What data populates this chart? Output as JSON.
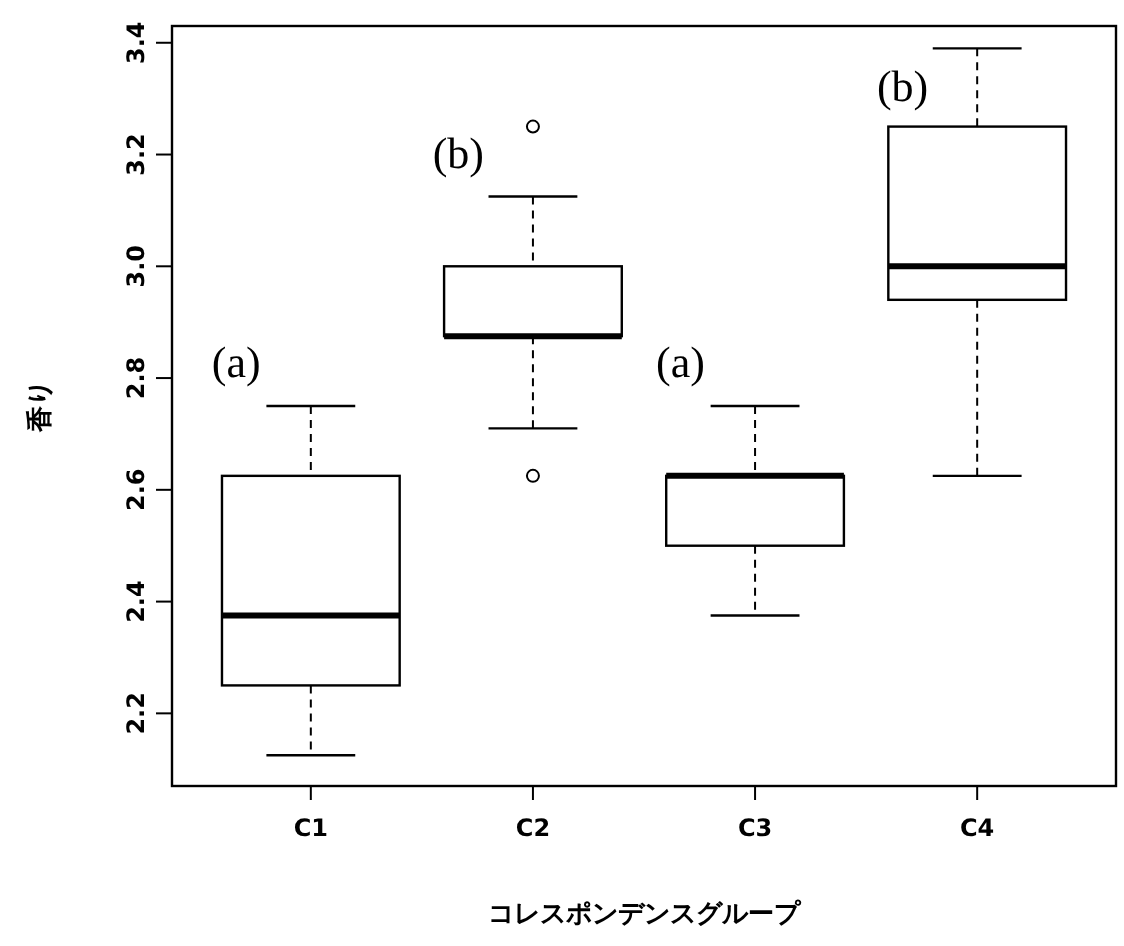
{
  "chart_data": {
    "type": "box",
    "xlabel": "コレスポンデンスグループ",
    "ylabel": "香り",
    "categories": [
      "C1",
      "C2",
      "C3",
      "C4"
    ],
    "boxes": [
      {
        "low": 2.125,
        "q1": 2.25,
        "median": 2.375,
        "q3": 2.625,
        "high": 2.75
      },
      {
        "low": 2.71,
        "q1": 2.875,
        "median": 2.875,
        "q3": 3.0,
        "high": 3.125,
        "outliers": [
          3.25,
          2.625
        ]
      },
      {
        "low": 2.375,
        "q1": 2.5,
        "median": 2.625,
        "q3": 2.625,
        "high": 2.75
      },
      {
        "low": 2.625,
        "q1": 2.94,
        "median": 3.0,
        "q3": 3.25,
        "high": 3.39
      }
    ],
    "ylim": [
      2.07,
      3.43
    ],
    "yticks": [
      2.2,
      2.4,
      2.6,
      2.8,
      {
        "value": 3,
        "label": "3.0"
      },
      3.2,
      3.4
    ],
    "annotations": [
      "(a)",
      "(b)",
      "(a)",
      "(b)"
    ]
  }
}
